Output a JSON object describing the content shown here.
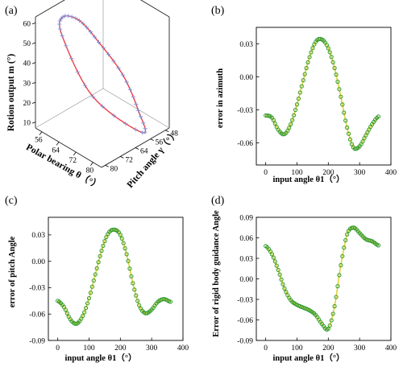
{
  "chart_data": [
    {
      "panel": "(a)",
      "type": "line",
      "projection": "3d",
      "axes": {
        "x": {
          "label": "Polar bearing θ（°）",
          "ticks": [
            56,
            64,
            72,
            80
          ],
          "range": [
            53,
            84
          ]
        },
        "y": {
          "label": "Pitch angle γ（°）",
          "ticks": [
            48,
            56,
            64,
            72,
            80
          ],
          "range": [
            46,
            82
          ]
        },
        "z": {
          "label": "Rotion output m (°)",
          "ticks": [
            10,
            20,
            30,
            40,
            50,
            60
          ],
          "range": [
            7,
            63
          ]
        }
      },
      "series": [
        {
          "role": "red curve",
          "color": "#e8404a"
        },
        {
          "role": "blue markers",
          "color": "#7f8fd6"
        }
      ],
      "curve": {
        "t": [
          0,
          45,
          90,
          135,
          180,
          225,
          270,
          315
        ],
        "x": [
          62,
          57,
          56,
          58,
          64,
          73,
          82,
          72
        ],
        "y": [
          78,
          72,
          62,
          54,
          48,
          50,
          58,
          73
        ],
        "z": [
          57,
          60,
          52,
          38,
          22,
          11,
          10,
          30
        ]
      },
      "grid": false
    },
    {
      "panel": "(b)",
      "type": "line",
      "xlabel": "input angle θ1（°）",
      "ylabel": "error in azimuth",
      "xlim": [
        -30,
        400
      ],
      "ylim": [
        -0.08,
        0.045
      ],
      "xticks": [
        0,
        100,
        200,
        300,
        400
      ],
      "yticks": [
        -0.06,
        -0.03,
        0.0,
        0.03
      ],
      "ytick_labels": [
        "-0.06",
        "-0.03",
        "0.00",
        "0.03"
      ],
      "series": [
        {
          "role": "fitted curve",
          "color": "#e0d23a",
          "x": [
            0,
            20,
            40,
            60,
            80,
            100,
            120,
            140,
            160,
            180,
            200,
            220,
            240,
            260,
            280,
            300,
            320,
            340,
            360
          ],
          "y": [
            -0.035,
            -0.037,
            -0.048,
            -0.052,
            -0.043,
            -0.025,
            -0.003,
            0.018,
            0.032,
            0.034,
            0.026,
            0.008,
            -0.018,
            -0.046,
            -0.064,
            -0.063,
            -0.053,
            -0.043,
            -0.036
          ]
        },
        {
          "role": "data markers",
          "color": "#2e9a2e",
          "x": [
            0,
            20,
            40,
            60,
            80,
            100,
            120,
            140,
            160,
            180,
            200,
            220,
            240,
            260,
            280,
            300,
            320,
            340,
            360
          ],
          "y": [
            -0.035,
            -0.037,
            -0.048,
            -0.052,
            -0.043,
            -0.025,
            -0.003,
            0.018,
            0.032,
            0.034,
            0.026,
            0.008,
            -0.018,
            -0.046,
            -0.064,
            -0.063,
            -0.053,
            -0.043,
            -0.036
          ]
        }
      ]
    },
    {
      "panel": "(c)",
      "type": "line",
      "xlabel": "input angle θ1（°）",
      "ylabel": "error of pitch Angle",
      "xlim": [
        -30,
        400
      ],
      "ylim": [
        -0.09,
        0.05
      ],
      "xticks": [
        0,
        100,
        200,
        300,
        400
      ],
      "yticks": [
        -0.09,
        -0.06,
        -0.03,
        0.0,
        0.03
      ],
      "ytick_labels": [
        "-0.09",
        "-0.06",
        "-0.03",
        "0.00",
        "0.03"
      ],
      "series": [
        {
          "role": "fitted curve",
          "color": "#e0d23a",
          "x": [
            0,
            20,
            40,
            60,
            80,
            100,
            120,
            140,
            160,
            180,
            200,
            220,
            240,
            260,
            280,
            300,
            320,
            340,
            360
          ],
          "y": [
            -0.045,
            -0.052,
            -0.066,
            -0.071,
            -0.062,
            -0.042,
            -0.015,
            0.012,
            0.031,
            0.036,
            0.03,
            0.008,
            -0.025,
            -0.05,
            -0.059,
            -0.055,
            -0.046,
            -0.043,
            -0.046
          ]
        },
        {
          "role": "data markers",
          "color": "#2e9a2e",
          "x": [
            0,
            20,
            40,
            60,
            80,
            100,
            120,
            140,
            160,
            180,
            200,
            220,
            240,
            260,
            280,
            300,
            320,
            340,
            360
          ],
          "y": [
            -0.045,
            -0.052,
            -0.066,
            -0.071,
            -0.062,
            -0.042,
            -0.015,
            0.012,
            0.031,
            0.036,
            0.03,
            0.008,
            -0.025,
            -0.05,
            -0.059,
            -0.055,
            -0.046,
            -0.043,
            -0.046
          ]
        }
      ]
    },
    {
      "panel": "(d)",
      "type": "line",
      "xlabel": "input angle θ1（°）",
      "ylabel": "Error of rigid body guidance Angle",
      "xlim": [
        -30,
        400
      ],
      "ylim": [
        -0.09,
        0.09
      ],
      "xticks": [
        0,
        100,
        200,
        300,
        400
      ],
      "yticks": [
        -0.09,
        -0.06,
        -0.03,
        0.0,
        0.03,
        0.06,
        0.09
      ],
      "ytick_labels": [
        "-0.09",
        "-0.06",
        "-0.03",
        "0.00",
        "0.03",
        "0.06",
        "0.09"
      ],
      "series": [
        {
          "role": "fitted curve",
          "color": "#e0d23a",
          "x": [
            0,
            20,
            40,
            60,
            80,
            100,
            120,
            140,
            160,
            180,
            200,
            220,
            240,
            260,
            280,
            300,
            320,
            340,
            360
          ],
          "y": [
            0.048,
            0.036,
            0.013,
            -0.014,
            -0.031,
            -0.038,
            -0.042,
            -0.046,
            -0.053,
            -0.066,
            -0.073,
            -0.04,
            0.02,
            0.065,
            0.075,
            0.067,
            0.058,
            0.055,
            0.049
          ]
        },
        {
          "role": "data markers",
          "color": "#2e9a2e",
          "x": [
            0,
            20,
            40,
            60,
            80,
            100,
            120,
            140,
            160,
            180,
            200,
            220,
            240,
            260,
            280,
            300,
            320,
            340,
            360
          ],
          "y": [
            0.048,
            0.036,
            0.013,
            -0.014,
            -0.031,
            -0.038,
            -0.042,
            -0.046,
            -0.053,
            -0.066,
            -0.073,
            -0.04,
            0.02,
            0.065,
            0.075,
            0.067,
            0.058,
            0.055,
            0.049
          ]
        }
      ]
    }
  ]
}
